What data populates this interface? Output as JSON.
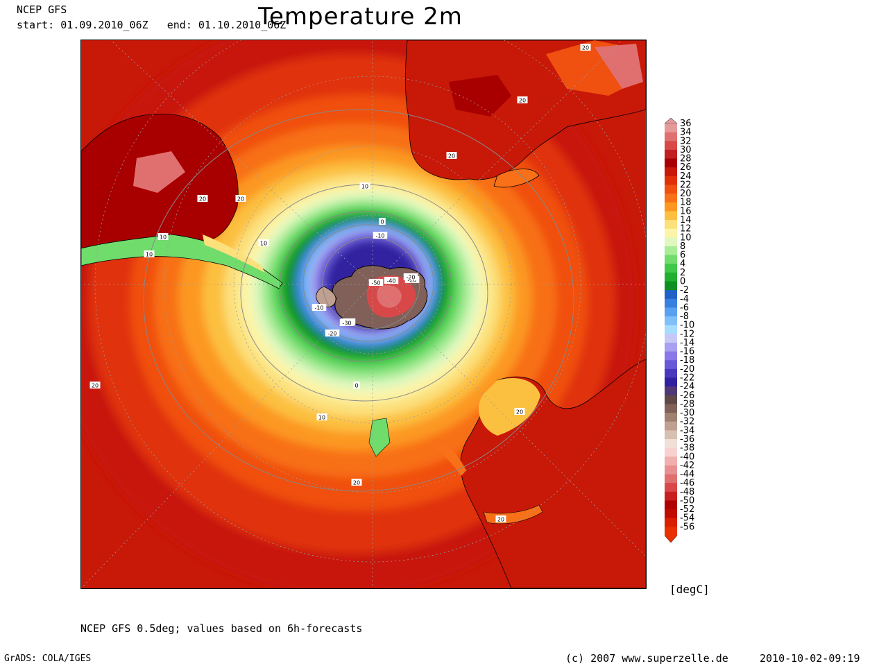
{
  "header": {
    "source": "NCEP GFS",
    "start_label": "start:",
    "start": "01.09.2010_06Z",
    "end_label": "end:",
    "end": "01.10.2010_06Z",
    "title": "Temperature 2m"
  },
  "legend": {
    "values": [
      "36",
      "34",
      "32",
      "30",
      "28",
      "26",
      "24",
      "22",
      "20",
      "18",
      "16",
      "14",
      "12",
      "10",
      "8",
      "6",
      "4",
      "2",
      "0",
      "-2",
      "-4",
      "-6",
      "-8",
      "-10",
      "-12",
      "-14",
      "-16",
      "-18",
      "-20",
      "-22",
      "-24",
      "-26",
      "-28",
      "-30",
      "-32",
      "-34",
      "-36",
      "-38",
      "-40",
      "-42",
      "-44",
      "-46",
      "-48",
      "-50",
      "-52",
      "-54",
      "-56"
    ],
    "colors": [
      "#e59a9a",
      "#e07070",
      "#d84848",
      "#c02020",
      "#a80000",
      "#c81808",
      "#e03008",
      "#f05010",
      "#f87018",
      "#fc9820",
      "#fcc040",
      "#fce07c",
      "#fcf4a8",
      "#e0f8c0",
      "#a8ec98",
      "#70dc6c",
      "#40c848",
      "#20b030",
      "#109020",
      "#2060c8",
      "#3880e0",
      "#58a0f0",
      "#80c0f8",
      "#a8dcfc",
      "#c8c8f8",
      "#a8a0f0",
      "#8878e8",
      "#6858d8",
      "#4838c0",
      "#3020a0",
      "#503878",
      "#604848",
      "#806058",
      "#a08070",
      "#c0a090",
      "#d8c0b0",
      "#f0e0d8",
      "#f8d0d0",
      "#f0b0b0",
      "#e89090",
      "#e07070",
      "#d84848",
      "#c82020",
      "#b00000",
      "#c00c00",
      "#d82000",
      "#e83000"
    ],
    "units": "[degC]"
  },
  "map": {
    "contour_labels": [
      "20",
      "20",
      "20",
      "20",
      "20",
      "20",
      "20",
      "20",
      "20",
      "10",
      "10",
      "10",
      "10",
      "10",
      "0",
      "0",
      "-10",
      "-10",
      "-20",
      "-20",
      "-20",
      "-30",
      "-30",
      "-40",
      "-50"
    ]
  },
  "footer": {
    "note": "NCEP GFS 0.5deg; values based on 6h-forecasts",
    "grads": "GrADS: COLA/IGES",
    "copyright": "(c) 2007 www.superzelle.de",
    "date": "2010-10-02-09:19"
  }
}
